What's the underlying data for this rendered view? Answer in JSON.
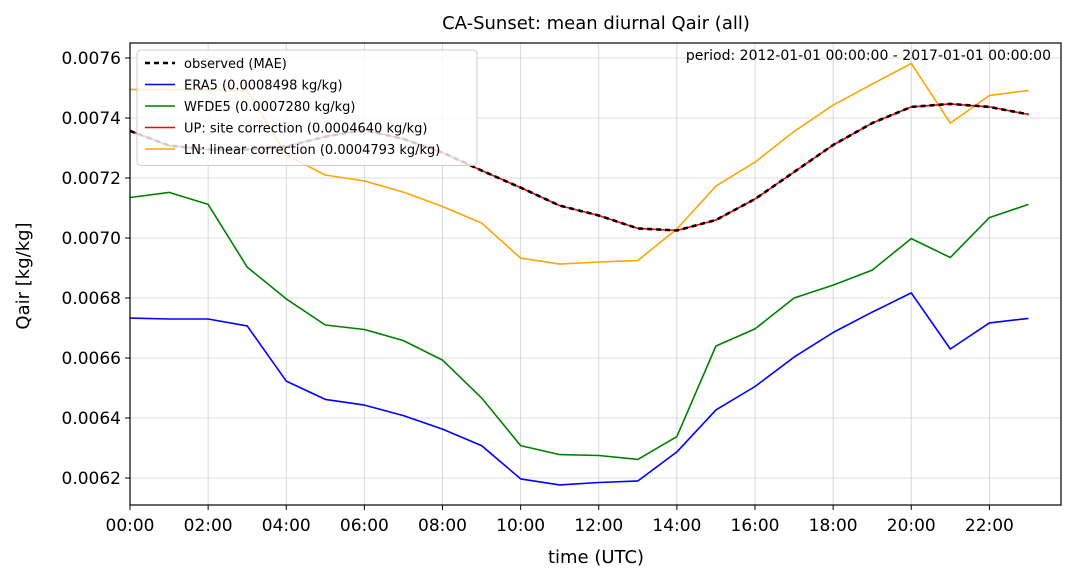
{
  "chart_data": {
    "type": "line",
    "title": "CA-Sunset: mean diurnal Qair (all)",
    "annotation": "period: 2012-01-01 00:00:00 - 2017-01-01 00:00:00",
    "xlabel": "time (UTC)",
    "ylabel": "Qair [kg/kg]",
    "x": [
      "00:00",
      "01:00",
      "02:00",
      "03:00",
      "04:00",
      "05:00",
      "06:00",
      "07:00",
      "08:00",
      "09:00",
      "10:00",
      "11:00",
      "12:00",
      "13:00",
      "14:00",
      "15:00",
      "16:00",
      "17:00",
      "18:00",
      "19:00",
      "20:00",
      "21:00",
      "22:00",
      "23:00"
    ],
    "xticks": [
      "00:00",
      "02:00",
      "04:00",
      "06:00",
      "08:00",
      "10:00",
      "12:00",
      "14:00",
      "16:00",
      "18:00",
      "20:00",
      "22:00"
    ],
    "xlim": [
      "00:00",
      "23:50"
    ],
    "ylim": [
      0.00611,
      0.00765
    ],
    "yticks": [
      "0.0062",
      "0.0064",
      "0.0066",
      "0.0068",
      "0.0070",
      "0.0072",
      "0.0074",
      "0.0076"
    ],
    "grid": true,
    "legend_position": "top-left",
    "series": [
      {
        "name": "observed (MAE)",
        "color": "#000000",
        "dash": "dashed",
        "values": [
          0.007357,
          0.007308,
          0.007295,
          0.007295,
          0.007305,
          0.007338,
          0.00736,
          0.00733,
          0.007285,
          0.007225,
          0.007168,
          0.007108,
          0.007075,
          0.007032,
          0.007025,
          0.00706,
          0.00713,
          0.00722,
          0.00731,
          0.007383,
          0.007437,
          0.007447,
          0.007437,
          0.007412
        ]
      },
      {
        "name": "ERA5 (0.0008498 kg/kg)",
        "color": "#0000ff",
        "values": [
          0.006733,
          0.00673,
          0.00673,
          0.006707,
          0.006523,
          0.006462,
          0.006443,
          0.006408,
          0.006363,
          0.006308,
          0.006197,
          0.006177,
          0.006185,
          0.00619,
          0.006287,
          0.006427,
          0.006505,
          0.006603,
          0.006685,
          0.006753,
          0.006817,
          0.00663,
          0.006717,
          0.006732
        ]
      },
      {
        "name": "WFDE5 (0.0007280 kg/kg)",
        "color": "#008000",
        "values": [
          0.007135,
          0.007152,
          0.007112,
          0.006903,
          0.006797,
          0.00671,
          0.006695,
          0.006658,
          0.006593,
          0.006467,
          0.006308,
          0.006278,
          0.006275,
          0.006262,
          0.006338,
          0.00664,
          0.006697,
          0.0068,
          0.006843,
          0.006893,
          0.006998,
          0.006935,
          0.007068,
          0.007112
        ]
      },
      {
        "name": "UP: site correction (0.0004640 kg/kg)",
        "color": "#ff0000",
        "values": [
          0.007357,
          0.007308,
          0.007295,
          0.007295,
          0.007305,
          0.007338,
          0.00736,
          0.00733,
          0.007285,
          0.007225,
          0.007168,
          0.007108,
          0.007075,
          0.007032,
          0.007025,
          0.00706,
          0.00713,
          0.00722,
          0.00731,
          0.007383,
          0.007437,
          0.007447,
          0.007437,
          0.007412
        ]
      },
      {
        "name": "LN: linear correction (0.0004793 kg/kg)",
        "color": "#ffa500",
        "values": [
          0.007495,
          0.007495,
          0.007493,
          0.00749,
          0.007277,
          0.00721,
          0.00719,
          0.007153,
          0.007105,
          0.00705,
          0.006933,
          0.006913,
          0.00692,
          0.006925,
          0.00703,
          0.007173,
          0.007253,
          0.007355,
          0.007443,
          0.007513,
          0.007582,
          0.007383,
          0.007475,
          0.007492
        ]
      }
    ]
  }
}
